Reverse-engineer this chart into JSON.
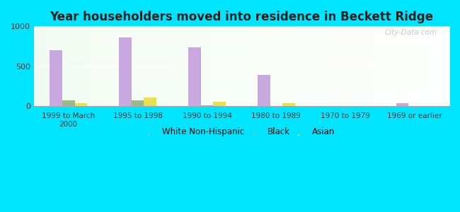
{
  "title": "Year householders moved into residence in Beckett Ridge",
  "categories": [
    "1999 to March\n2000",
    "1995 to 1998",
    "1990 to 1994",
    "1980 to 1989",
    "1970 to 1979",
    "1969 or earlier"
  ],
  "white": [
    700,
    860,
    740,
    390,
    0,
    40
  ],
  "black": [
    75,
    75,
    10,
    0,
    0,
    0
  ],
  "asian": [
    35,
    110,
    55,
    40,
    0,
    0
  ],
  "white_color": "#c9a8e0",
  "black_color": "#9ab88a",
  "asian_color": "#e8e050",
  "title_color": "#222222",
  "outer_background": "#00e5ff",
  "ylim": [
    0,
    1000
  ],
  "yticks": [
    0,
    500,
    1000
  ],
  "bar_width": 0.18,
  "watermark": "City-Data.com"
}
